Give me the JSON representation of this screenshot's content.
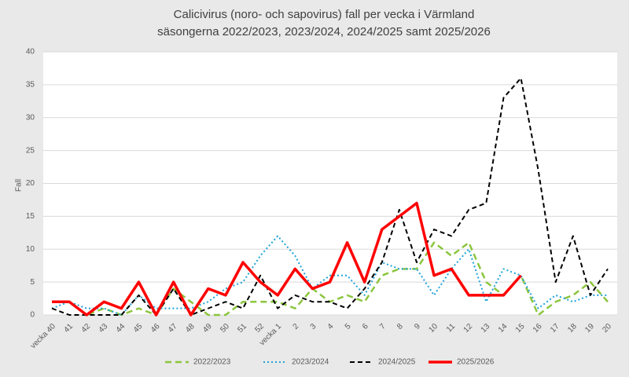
{
  "chart_data": {
    "type": "line",
    "title": [
      "Calicivirus (noro- och sapovirus) fall per vecka i Värmland",
      "säsongerna 2022/2023, 2023/2024, 2024/2025 samt 2025/2026"
    ],
    "y_label": "Fall",
    "categories": [
      "vecka 40",
      "41",
      "42",
      "43",
      "44",
      "45",
      "46",
      "47",
      "48",
      "49",
      "50",
      "51",
      "52",
      "vecka 1",
      "2",
      "3",
      "4",
      "5",
      "6",
      "7",
      "8",
      "9",
      "10",
      "11",
      "12",
      "13",
      "14",
      "15",
      "16",
      "17",
      "18",
      "19",
      "20"
    ],
    "series": [
      {
        "name": "2022/2023",
        "color": "#8cc63f",
        "dash": "8,5",
        "width": 2.5,
        "values": [
          2,
          2,
          0,
          1,
          0,
          1,
          0,
          4,
          2,
          0,
          0,
          2,
          2,
          2,
          1,
          4,
          2,
          3,
          2,
          6,
          7,
          7,
          11,
          9,
          11,
          5,
          3,
          6,
          0,
          2,
          3,
          5,
          2
        ]
      },
      {
        "name": "2023/2024",
        "color": "#1fa3d9",
        "dash": "2,3",
        "width": 2,
        "values": [
          1,
          2,
          1,
          1,
          0,
          3,
          1,
          1,
          1,
          2,
          4,
          5,
          9,
          12,
          9,
          4,
          6,
          6,
          3,
          8,
          7,
          7,
          3,
          7,
          10,
          2,
          7,
          6,
          1,
          3,
          2,
          3,
          3
        ]
      },
      {
        "name": "2024/2025",
        "color": "#000000",
        "dash": "6,4",
        "width": 2,
        "values": [
          1,
          0,
          0,
          0,
          0,
          3,
          0,
          4,
          0,
          1,
          2,
          1,
          6,
          1,
          3,
          2,
          2,
          1,
          4,
          8,
          16,
          8,
          13,
          12,
          16,
          17,
          33,
          36,
          22,
          5,
          12,
          3,
          7
        ]
      },
      {
        "name": "2025/2026",
        "color": "#ff0000",
        "dash": "none",
        "width": 3.5,
        "values": [
          2,
          2,
          0,
          2,
          1,
          5,
          0,
          5,
          0,
          4,
          3,
          8,
          5,
          3,
          7,
          4,
          5,
          11,
          5,
          13,
          15,
          17,
          6,
          7,
          3,
          3,
          3,
          6,
          null,
          null,
          null,
          null,
          null
        ]
      }
    ],
    "ylim": [
      0,
      40
    ],
    "yticks": [
      0,
      5,
      10,
      15,
      20,
      25,
      30,
      35,
      40
    ],
    "grid": true
  }
}
